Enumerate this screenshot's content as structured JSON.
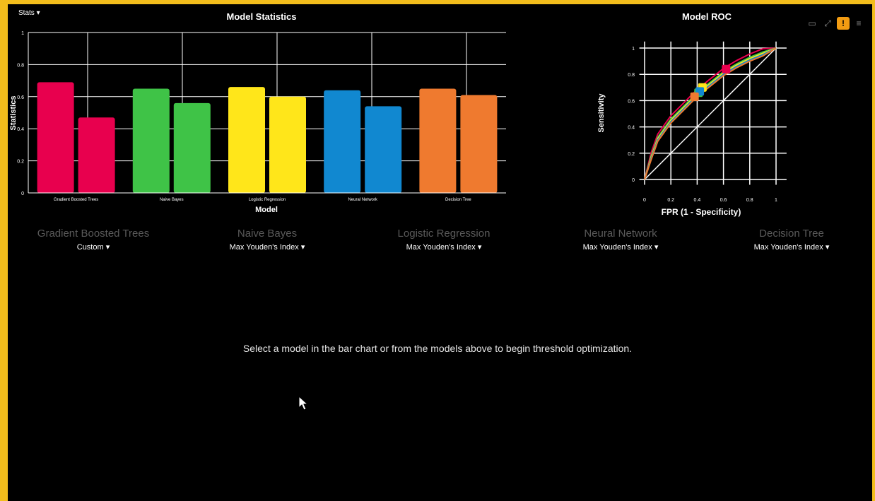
{
  "stats_dropdown": "Stats ▾",
  "bar_chart": {
    "title": "Model Statistics",
    "xlabel": "Model",
    "ylabel": "Statistics",
    "ylim": [
      0,
      1
    ],
    "yticks": [
      "0",
      "0.2",
      "0.4",
      "0.6",
      "0.8",
      "1"
    ],
    "categories": [
      "Gradient Boosted Trees",
      "Naive Bayes",
      "Logistic Regression",
      "Neural Network",
      "Decision Tree"
    ],
    "series": [
      {
        "values": [
          0.69,
          0.65,
          0.66,
          0.64,
          0.65
        ]
      },
      {
        "values": [
          0.47,
          0.56,
          0.6,
          0.54,
          0.61
        ]
      }
    ],
    "colors": [
      "#e8004e",
      "#3fc347",
      "#ffe61a",
      "#1188d0",
      "#ef7a2f"
    ]
  },
  "roc_chart": {
    "title": "Model ROC",
    "xlabel": "FPR (1 - Specificity)",
    "ylabel": "Sensitivity",
    "xticks": [
      "0",
      "0.2",
      "0.4",
      "0.6",
      "0.8",
      "1"
    ],
    "yticks": [
      "0",
      "0.2",
      "0.4",
      "0.6",
      "0.8",
      "1"
    ]
  },
  "chart_data": [
    {
      "type": "bar",
      "title": "Model Statistics",
      "xlabel": "Model",
      "ylabel": "Statistics",
      "ylim": [
        0,
        1
      ],
      "categories": [
        "Gradient Boosted Trees",
        "Naive Bayes",
        "Logistic Regression",
        "Neural Network",
        "Decision Tree"
      ],
      "series": [
        {
          "values": [
            0.69,
            0.65,
            0.66,
            0.64,
            0.65
          ]
        },
        {
          "values": [
            0.47,
            0.56,
            0.6,
            0.54,
            0.61
          ]
        }
      ]
    },
    {
      "type": "line",
      "title": "Model ROC",
      "xlabel": "FPR (1 - Specificity)",
      "ylabel": "Sensitivity",
      "xlim": [
        0,
        1
      ],
      "ylim": [
        0,
        1
      ],
      "curve_points": [
        [
          0,
          0
        ],
        [
          0.05,
          0.18
        ],
        [
          0.1,
          0.32
        ],
        [
          0.2,
          0.46
        ],
        [
          0.3,
          0.56
        ],
        [
          0.4,
          0.66
        ],
        [
          0.5,
          0.74
        ],
        [
          0.6,
          0.82
        ],
        [
          0.7,
          0.88
        ],
        [
          0.8,
          0.93
        ],
        [
          0.9,
          0.97
        ],
        [
          1,
          1
        ]
      ],
      "thresholds": [
        {
          "fpr": 0.62,
          "tpr": 0.84,
          "color": "#e8004e"
        },
        {
          "fpr": 0.44,
          "tpr": 0.7,
          "color": "#ffe61a"
        },
        {
          "fpr": 0.41,
          "tpr": 0.66,
          "color": "#3fc347"
        },
        {
          "fpr": 0.42,
          "tpr": 0.67,
          "color": "#1188d0"
        },
        {
          "fpr": 0.38,
          "tpr": 0.63,
          "color": "#ef7a2f"
        }
      ]
    }
  ],
  "models": [
    {
      "name": "Gradient Boosted Trees",
      "threshold": "Custom ▾"
    },
    {
      "name": "Naive Bayes",
      "threshold": "Max Youden's Index ▾"
    },
    {
      "name": "Logistic Regression",
      "threshold": "Max Youden's Index ▾"
    },
    {
      "name": "Neural Network",
      "threshold": "Max Youden's Index ▾"
    },
    {
      "name": "Decision Tree",
      "threshold": "Max Youden's Index ▾"
    }
  ],
  "message": "Select a model in the bar chart or from the models above to begin threshold optimization.",
  "toolbar_icons": [
    "minimize-icon",
    "expand-icon",
    "warning-icon",
    "menu-icon"
  ],
  "toolbar_glyphs": [
    "▭",
    "⤢",
    "!",
    "≡"
  ]
}
